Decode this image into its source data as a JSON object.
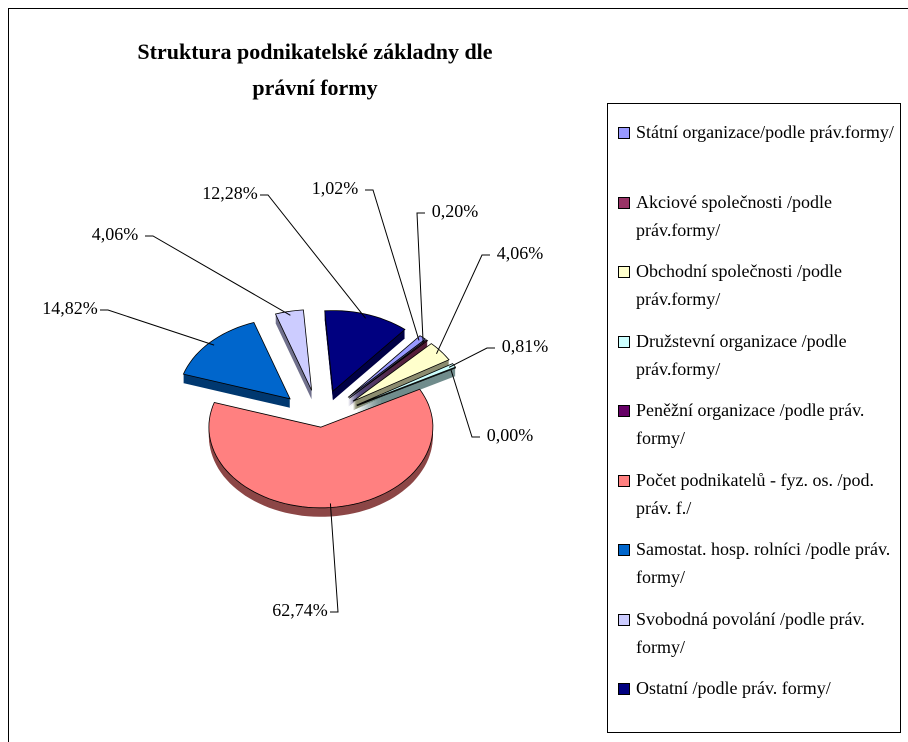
{
  "chart_data": {
    "type": "pie",
    "title": "Struktura podnikatelské základny dle právní formy",
    "categories": [
      "Státní organizace/podle práv.formy/",
      "Akciové společnosti /podle práv.formy/",
      "Obchodní společnosti /podle práv.formy/",
      "Družstevní organizace /podle práv.formy/",
      "Peněžní organizace /podle práv. formy/",
      "Počet podnikatelů - fyz. os. /pod. práv. f./",
      "Samostat. hosp. rolníci /podle práv. formy/",
      "Svobodná povolání /podle práv. formy/",
      "Ostatní /podle práv. formy/"
    ],
    "values": [
      1.02,
      0.2,
      4.06,
      0.81,
      0,
      62.74,
      14.82,
      4.06,
      12.28
    ],
    "value_labels": [
      "1,02%",
      "0,20%",
      "4,06%",
      "0,81%",
      "0,00%",
      "62,74%",
      "14,82%",
      "4,06%",
      "12,28%"
    ],
    "colors": [
      "#9999ff",
      "#993366",
      "#ffffcc",
      "#ccffff",
      "#660066",
      "#ff8080",
      "#0066cc",
      "#ccccff",
      "#000080"
    ],
    "legend": "right"
  }
}
